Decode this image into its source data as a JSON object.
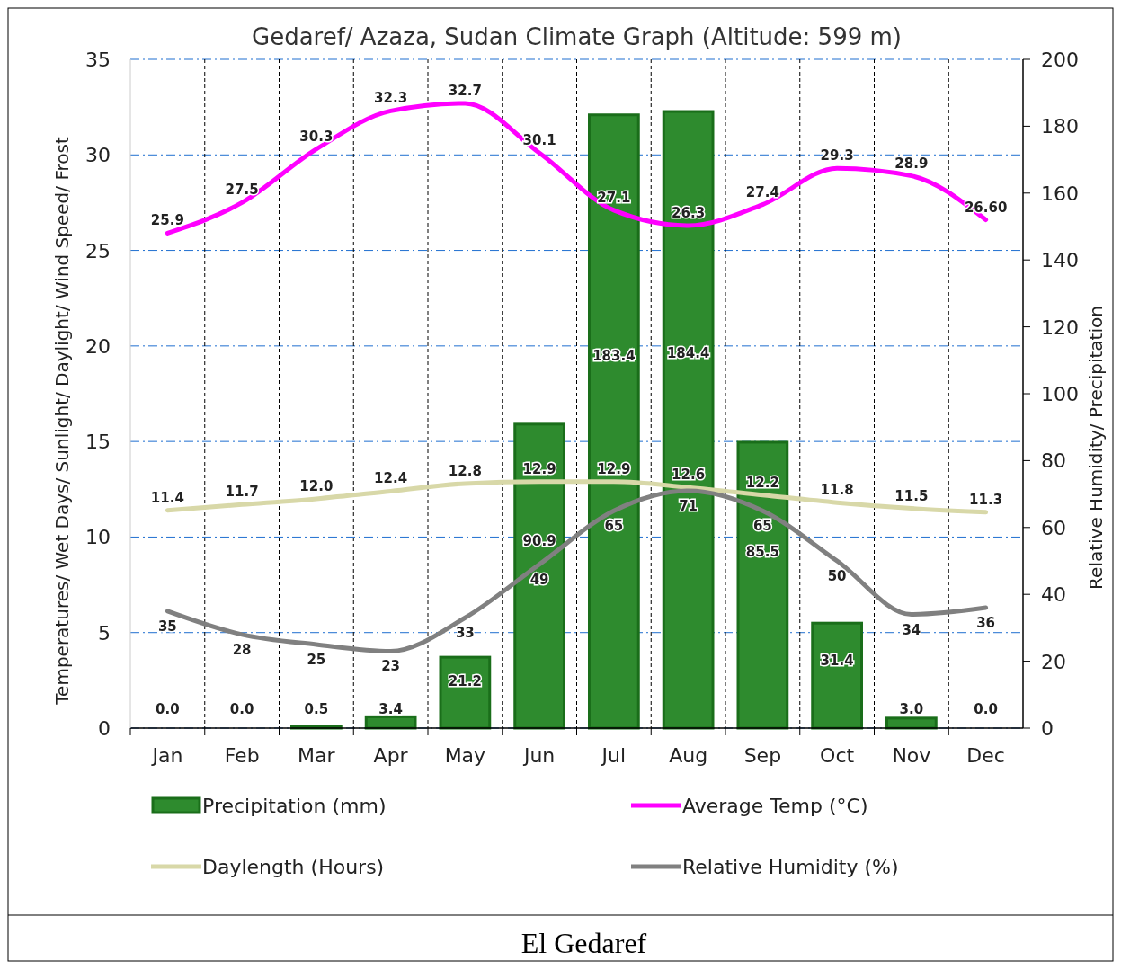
{
  "chart_data": {
    "type": "bar",
    "title": "Gedaref/ Azaza, Sudan Climate Graph (Altitude: 599 m)",
    "ylabel": "Temperatures/ Wet Days/ Sunlight/ Daylight/ Wind Speed/ Frost",
    "y2label": "Relative Humidity/ Precipitation",
    "categories": [
      "Jan",
      "Feb",
      "Mar",
      "Apr",
      "May",
      "Jun",
      "Jul",
      "Aug",
      "Sep",
      "Oct",
      "Nov",
      "Dec"
    ],
    "series": [
      {
        "name": "Precipitation (mm)",
        "axis": "y2",
        "color": "#2e8b2e",
        "values": [
          0,
          0,
          0.5,
          3.4,
          21.2,
          90.9,
          183.4,
          184.4,
          85.5,
          31.4,
          3.0,
          0
        ],
        "value_labels": [
          "0.0",
          "0.0",
          "0.5",
          "3.4",
          "21.2",
          "90.9",
          "183.4",
          "184.4",
          "85.5",
          "31.4",
          "3.0",
          "0.0"
        ]
      },
      {
        "name": "Average Temp (°C)",
        "type": "line",
        "color": "#ff00ff",
        "values": [
          25.9,
          27.5,
          30.3,
          32.3,
          32.7,
          30.1,
          27.1,
          26.3,
          27.4,
          29.3,
          28.9,
          26.6
        ],
        "value_labels": [
          "25.9",
          "27.5",
          "30.3",
          "32.3",
          "32.7",
          "30.1",
          "27.1",
          "26.3",
          "27.4",
          "29.3",
          "28.9",
          "26.60"
        ]
      },
      {
        "name": "Daylength (Hours)",
        "type": "line",
        "color": "#d8d8a8",
        "values": [
          11.4,
          11.7,
          12.0,
          12.4,
          12.8,
          12.9,
          12.9,
          12.6,
          12.2,
          11.8,
          11.5,
          11.3
        ],
        "value_labels": [
          "11.4",
          "11.7",
          "12.0",
          "12.4",
          "12.8",
          "12.9",
          "12.9",
          "12.6",
          "12.2",
          "11.8",
          "11.5",
          "11.3"
        ]
      },
      {
        "name": "Relative Humidity (%)",
        "type": "line",
        "axis": "y2",
        "color": "#808080",
        "values": [
          35,
          28,
          25,
          23,
          33,
          49,
          65,
          71,
          65,
          50,
          34,
          36
        ],
        "value_labels": [
          "35",
          "28",
          "25",
          "23",
          "33",
          "49",
          "65",
          "71",
          "65",
          "50",
          "34",
          "36"
        ]
      }
    ],
    "ylim": [
      0,
      35
    ],
    "yticks": [
      0,
      5,
      10,
      15,
      20,
      25,
      30,
      35
    ],
    "y2lim": [
      0,
      200
    ],
    "y2ticks": [
      0,
      20,
      40,
      60,
      80,
      100,
      120,
      140,
      160,
      180,
      200
    ],
    "grid": true,
    "legend": "bottom",
    "annotations": [
      "El Gedaref"
    ]
  }
}
